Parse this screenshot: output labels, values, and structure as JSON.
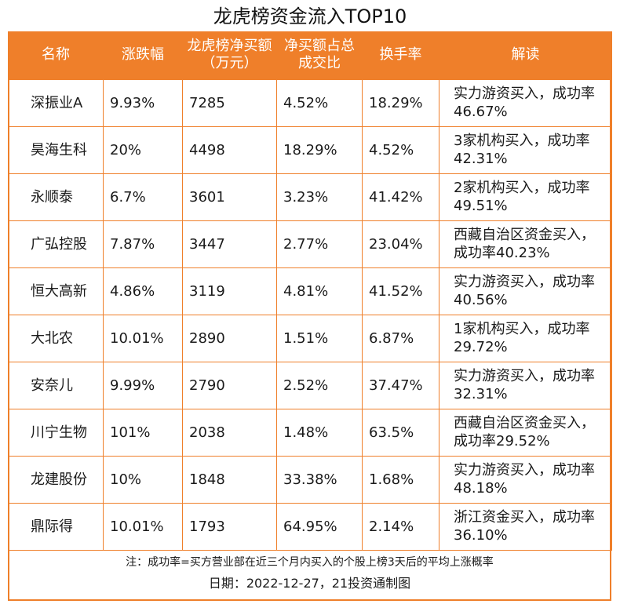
{
  "title": "龙虎榜资金流入TOP10",
  "chart_data": {
    "type": "table",
    "title": "龙虎榜资金流入TOP10",
    "columns": [
      "名称",
      "涨跌幅",
      "龙虎榜净买额（万元）",
      "净买额占总成交比",
      "换手率",
      "解读"
    ],
    "rows": [
      [
        "深振业A",
        "9.93%",
        "7285",
        "4.52%",
        "18.29%",
        "实力游资买入，成功率46.67%"
      ],
      [
        "昊海生科",
        "20%",
        "4498",
        "18.29%",
        "4.52%",
        "3家机构买入，成功率42.31%"
      ],
      [
        "永顺泰",
        "6.7%",
        "3601",
        "3.23%",
        "41.42%",
        "2家机构买入，成功率49.51%"
      ],
      [
        "广弘控股",
        "7.87%",
        "3447",
        "2.77%",
        "23.04%",
        "西藏自治区资金买入，成功率40.23%"
      ],
      [
        "恒大高新",
        "4.86%",
        "3119",
        "4.81%",
        "41.52%",
        "实力游资买入，成功率40.56%"
      ],
      [
        "大北农",
        "10.01%",
        "2890",
        "1.51%",
        "6.87%",
        "1家机构买入，成功率29.72%"
      ],
      [
        "安奈儿",
        "9.99%",
        "2790",
        "2.52%",
        "37.47%",
        "实力游资买入，成功率32.31%"
      ],
      [
        "川宁生物",
        "101%",
        "2038",
        "1.48%",
        "63.5%",
        "西藏自治区资金买入，成功率29.52%"
      ],
      [
        "龙建股份",
        "10%",
        "1848",
        "33.38%",
        "1.68%",
        "实力游资买入，成功率48.18%"
      ],
      [
        "鼎际得",
        "10.01%",
        "1793",
        "64.95%",
        "2.14%",
        "浙江资金买入，成功率36.10%"
      ]
    ]
  },
  "header": {
    "col1": "名称",
    "col2": "涨跌幅",
    "col3": "龙虎榜净买额（万元）",
    "col4": "净买额占总成交比",
    "col5": "换手率",
    "col6": "解读"
  },
  "footer": {
    "note": "注：成功率=买方营业部在近三个月内买入的个股上榜3天后的平均上涨概率",
    "date": "日期：2022-12-27，21投资通制图"
  },
  "colors": {
    "accent": "#ef7f2a",
    "header_text": "#ffffff"
  }
}
